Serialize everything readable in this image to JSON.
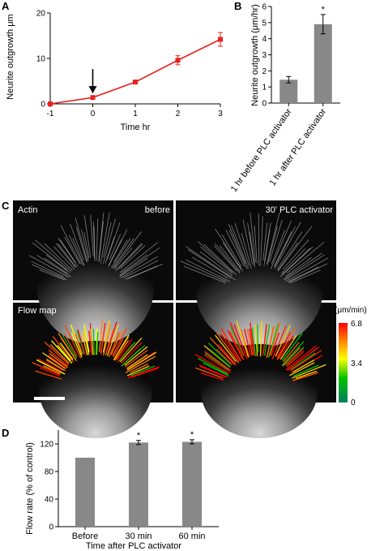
{
  "panels": {
    "A": {
      "letter": "A",
      "chart_data": {
        "type": "line",
        "x": [
          -1,
          0,
          1,
          2,
          3
        ],
        "y": [
          0,
          1.4,
          4.8,
          9.6,
          14.2
        ],
        "errors": [
          0,
          0.3,
          0.4,
          1.0,
          1.5
        ],
        "xlabel": "Time hr",
        "ylabel": "Neurite outgrowth μm",
        "xlim": [
          -1,
          3
        ],
        "ylim": [
          0,
          20
        ],
        "xticks": [
          "-1",
          "0",
          "1",
          "2",
          "3"
        ],
        "yticks": [
          "0",
          "10",
          "20"
        ],
        "arrow_at_x": 0,
        "color": "#e8231d"
      }
    },
    "B": {
      "letter": "B",
      "chart_data": {
        "type": "bar",
        "categories": [
          "1 hr before PLC activator",
          "1 hr after PLC activator"
        ],
        "values": [
          1.45,
          4.9
        ],
        "errors": [
          0.2,
          0.6
        ],
        "significance": [
          "",
          "*"
        ],
        "ylabel": "Neurite outgrowth (μm/hr)",
        "ylim": [
          0,
          6
        ],
        "yticks": [
          "0",
          "1",
          "2",
          "3",
          "4",
          "5",
          "6"
        ],
        "bar_color": "#888888"
      }
    },
    "C": {
      "letter": "C",
      "labels": {
        "actin": "Actin",
        "before": "before",
        "after": "30' PLC activator",
        "flow_map": "Flow map"
      },
      "colorbar": {
        "unit": "(μm/min)",
        "max": "6.8",
        "mid": "3.4",
        "min": "0",
        "colors": [
          "#008060",
          "#00c000",
          "#ffff00",
          "#ff8000",
          "#ff0000"
        ]
      }
    },
    "D": {
      "letter": "D",
      "chart_data": {
        "type": "bar",
        "categories": [
          "Before",
          "30 min",
          "60 min"
        ],
        "values": [
          100,
          122,
          123
        ],
        "errors": [
          0,
          3,
          3
        ],
        "significance": [
          "",
          "*",
          "*"
        ],
        "xlabel": "Time after PLC activator",
        "ylabel": "Flow rate (% of control)",
        "ylim": [
          0,
          140
        ],
        "yticks": [
          "0",
          "40",
          "80",
          "120"
        ],
        "bar_color": "#888888"
      }
    }
  }
}
